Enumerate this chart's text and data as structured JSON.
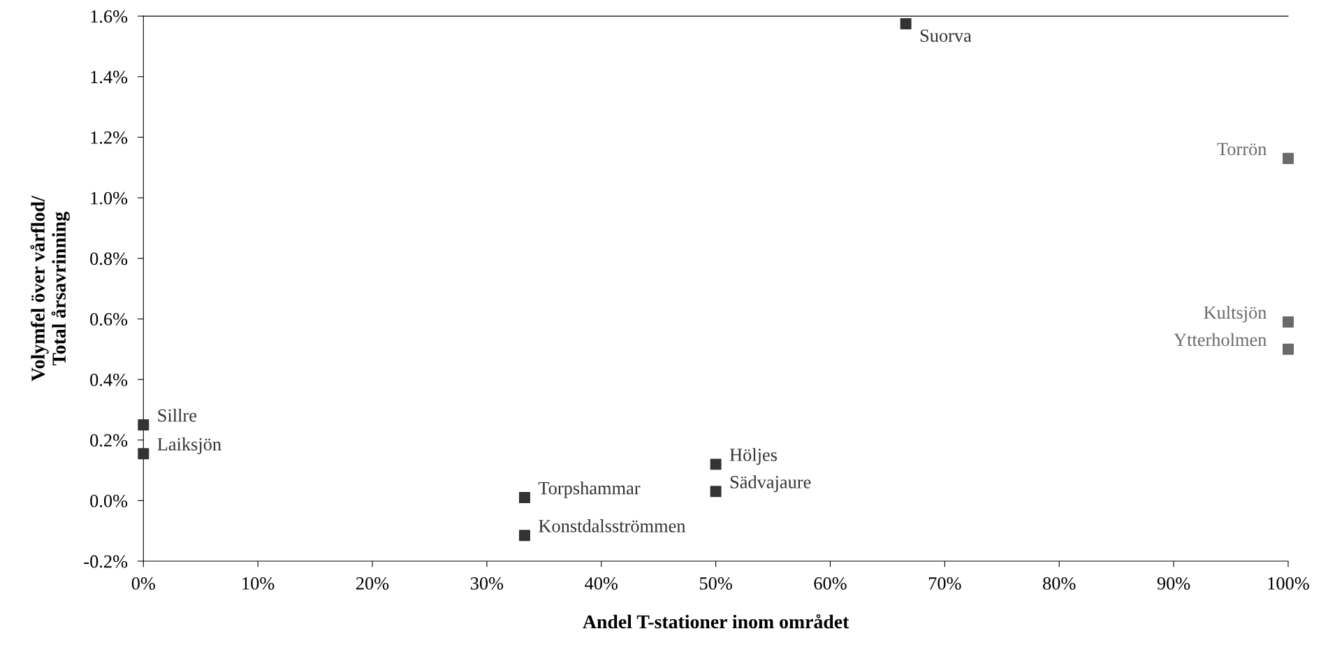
{
  "chart_data": {
    "type": "scatter",
    "xlabel": "Andel T-stationer inom området",
    "ylabel": "Volymfel över vårflod/\nTotal årsavrinning",
    "x": [
      66.6,
      100,
      100,
      100,
      0,
      0,
      33.3,
      33.3,
      50,
      50
    ],
    "values": [
      1.575,
      1.13,
      0.59,
      0.5,
      0.25,
      0.155,
      0.01,
      -0.115,
      0.12,
      0.03
    ],
    "colors": [
      "#333333",
      "#6a6a6a",
      "#6a6a6a",
      "#6a6a6a",
      "#333333",
      "#333333",
      "#333333",
      "#333333",
      "#333333",
      "#333333"
    ],
    "marker": "square",
    "annotations": [
      {
        "text": "Suorva",
        "x": 66.6,
        "y": 1.575
      },
      {
        "text": "Torrön",
        "x": 100,
        "y": 1.13
      },
      {
        "text": "Kultsjön",
        "x": 100,
        "y": 0.59
      },
      {
        "text": "Ytterholmen",
        "x": 100,
        "y": 0.5
      },
      {
        "text": "Sillre",
        "x": 0,
        "y": 0.25
      },
      {
        "text": "Laiksjön",
        "x": 0,
        "y": 0.155
      },
      {
        "text": "Torpshammar",
        "x": 33.3,
        "y": 0.01
      },
      {
        "text": "Konstdalsströmmen",
        "x": 33.3,
        "y": -0.115
      },
      {
        "text": "Höljes",
        "x": 50,
        "y": 0.12
      },
      {
        "text": "Sädvajaure",
        "x": 50,
        "y": 0.03
      }
    ],
    "xlim": [
      0,
      100
    ],
    "xticks": [
      {
        "value": 0,
        "label": "0%"
      },
      {
        "value": 10,
        "label": "10%"
      },
      {
        "value": 20,
        "label": "20%"
      },
      {
        "value": 30,
        "label": "30%"
      },
      {
        "value": 40,
        "label": "40%"
      },
      {
        "value": 50,
        "label": "50%"
      },
      {
        "value": 60,
        "label": "60%"
      },
      {
        "value": 70,
        "label": "70%"
      },
      {
        "value": 80,
        "label": "80%"
      },
      {
        "value": 90,
        "label": "90%"
      },
      {
        "value": 100,
        "label": "100%"
      }
    ],
    "ylim": [
      -0.2,
      1.6
    ],
    "yticks": [
      {
        "value": -0.2,
        "label": "-0.2%"
      },
      {
        "value": 0,
        "label": "0.0%"
      },
      {
        "value": 0.2,
        "label": "0.2%"
      },
      {
        "value": 0.4,
        "label": "0.4%"
      },
      {
        "value": 0.6,
        "label": "0.6%"
      },
      {
        "value": 0.8,
        "label": "0.8%"
      },
      {
        "value": 1.0,
        "label": "1.0%"
      },
      {
        "value": 1.2,
        "label": "1.2%"
      },
      {
        "value": 1.4,
        "label": "1.4%"
      },
      {
        "value": 1.6,
        "label": "1.6%"
      }
    ],
    "grid": false,
    "legend": false
  }
}
